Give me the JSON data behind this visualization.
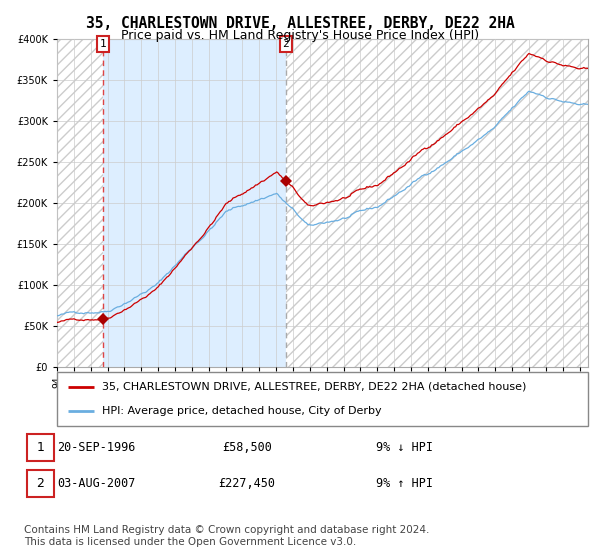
{
  "title": "35, CHARLESTOWN DRIVE, ALLESTREE, DERBY, DE22 2HA",
  "subtitle": "Price paid vs. HM Land Registry's House Price Index (HPI)",
  "legend_line1": "35, CHARLESTOWN DRIVE, ALLESTREE, DERBY, DE22 2HA (detached house)",
  "legend_line2": "HPI: Average price, detached house, City of Derby",
  "annotation1_date": "20-SEP-1996",
  "annotation1_price": "£58,500",
  "annotation1_hpi": "9% ↓ HPI",
  "annotation2_date": "03-AUG-2007",
  "annotation2_price": "£227,450",
  "annotation2_hpi": "9% ↑ HPI",
  "footnote": "Contains HM Land Registry data © Crown copyright and database right 2024.\nThis data is licensed under the Open Government Licence v3.0.",
  "sale1_year": 1996.72,
  "sale1_price": 58500,
  "sale2_year": 2007.58,
  "sale2_price": 227450,
  "xmin": 1994.0,
  "xmax": 2025.5,
  "ymin": 0,
  "ymax": 400000,
  "hpi_color": "#6aaee0",
  "price_color": "#cc0000",
  "marker_color": "#aa0000",
  "shaded_color": "#ddeeff",
  "hatch_color": "#cccccc",
  "vline1_color": "#dd4444",
  "vline2_color": "#aaaaaa",
  "grid_color": "#cccccc",
  "background_color": "#ffffff",
  "title_fontsize": 10.5,
  "subtitle_fontsize": 9,
  "tick_fontsize": 7,
  "legend_fontsize": 8,
  "annot_fontsize": 8.5,
  "footnote_fontsize": 7.5
}
